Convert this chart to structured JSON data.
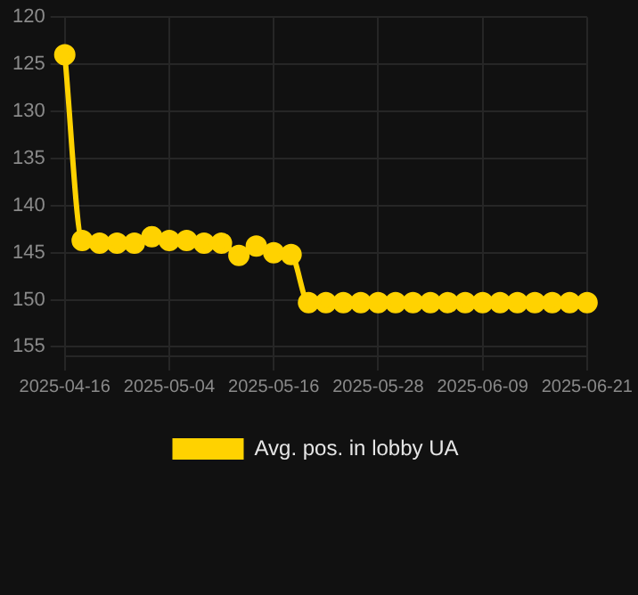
{
  "chart_data": {
    "type": "line",
    "categories": [
      "2025-04-16",
      null,
      null,
      null,
      null,
      null,
      "2025-05-04",
      null,
      null,
      null,
      null,
      null,
      "2025-05-16",
      null,
      null,
      null,
      null,
      null,
      "2025-05-28",
      null,
      null,
      null,
      null,
      null,
      "2025-06-09",
      null,
      null,
      null,
      null,
      null,
      "2025-06-21"
    ],
    "series": [
      {
        "name": "Avg. pos. in lobby UA",
        "color": "#ffd200",
        "values": [
          124,
          143.7,
          144,
          144,
          144,
          143.3,
          143.7,
          143.7,
          144,
          144,
          145.3,
          144.3,
          145,
          145.2,
          150.3,
          150.3,
          150.3,
          150.3,
          150.3,
          150.3,
          150.3,
          150.3,
          150.3,
          150.3,
          150.3,
          150.3,
          150.3,
          150.3,
          150.3,
          150.3,
          150.3
        ]
      }
    ],
    "ylim": [
      156,
      120
    ],
    "yticks": [
      120,
      125,
      130,
      135,
      140,
      145,
      150,
      155
    ],
    "grid": true,
    "legend": "bottom",
    "marker": "circle",
    "line_style": "solid"
  }
}
